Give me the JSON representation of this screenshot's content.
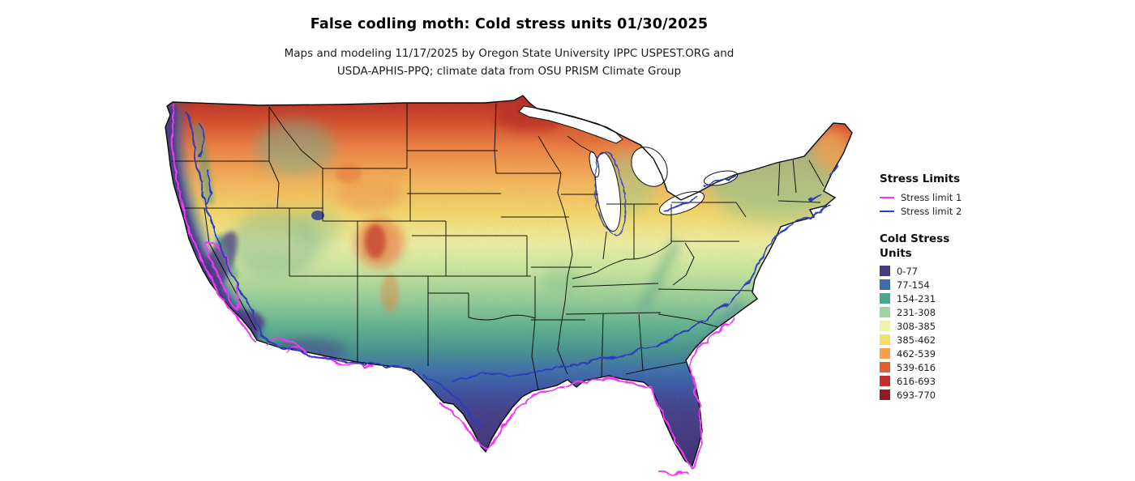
{
  "title": "False codling moth: Cold stress units 01/30/2025",
  "subtitle": {
    "line1": "Maps and modeling 11/17/2025 by Oregon State University IPPC USPEST.ORG and",
    "line2": "USDA-APHIS-PPQ; climate data from OSU PRISM Climate Group"
  },
  "legend": {
    "stress_limits": {
      "heading": "Stress Limits",
      "items": [
        {
          "label": "Stress limit 1",
          "color": "#ee3bee"
        },
        {
          "label": "Stress limit 2",
          "color": "#2f3dbe"
        }
      ]
    },
    "cold_stress": {
      "heading_line1": "Cold Stress",
      "heading_line2": "Units",
      "bins": [
        {
          "label": "0-77",
          "color": "#473a7f"
        },
        {
          "label": "77-154",
          "color": "#3a6cb1"
        },
        {
          "label": "154-231",
          "color": "#4ba78c"
        },
        {
          "label": "231-308",
          "color": "#a2d49a"
        },
        {
          "label": "308-385",
          "color": "#eef3ac"
        },
        {
          "label": "385-462",
          "color": "#f9de64"
        },
        {
          "label": "462-539",
          "color": "#f7a04c"
        },
        {
          "label": "539-616",
          "color": "#e65b30"
        },
        {
          "label": "616-693",
          "color": "#c62f2c"
        },
        {
          "label": "693-770",
          "color": "#8e1a2c"
        }
      ]
    }
  }
}
